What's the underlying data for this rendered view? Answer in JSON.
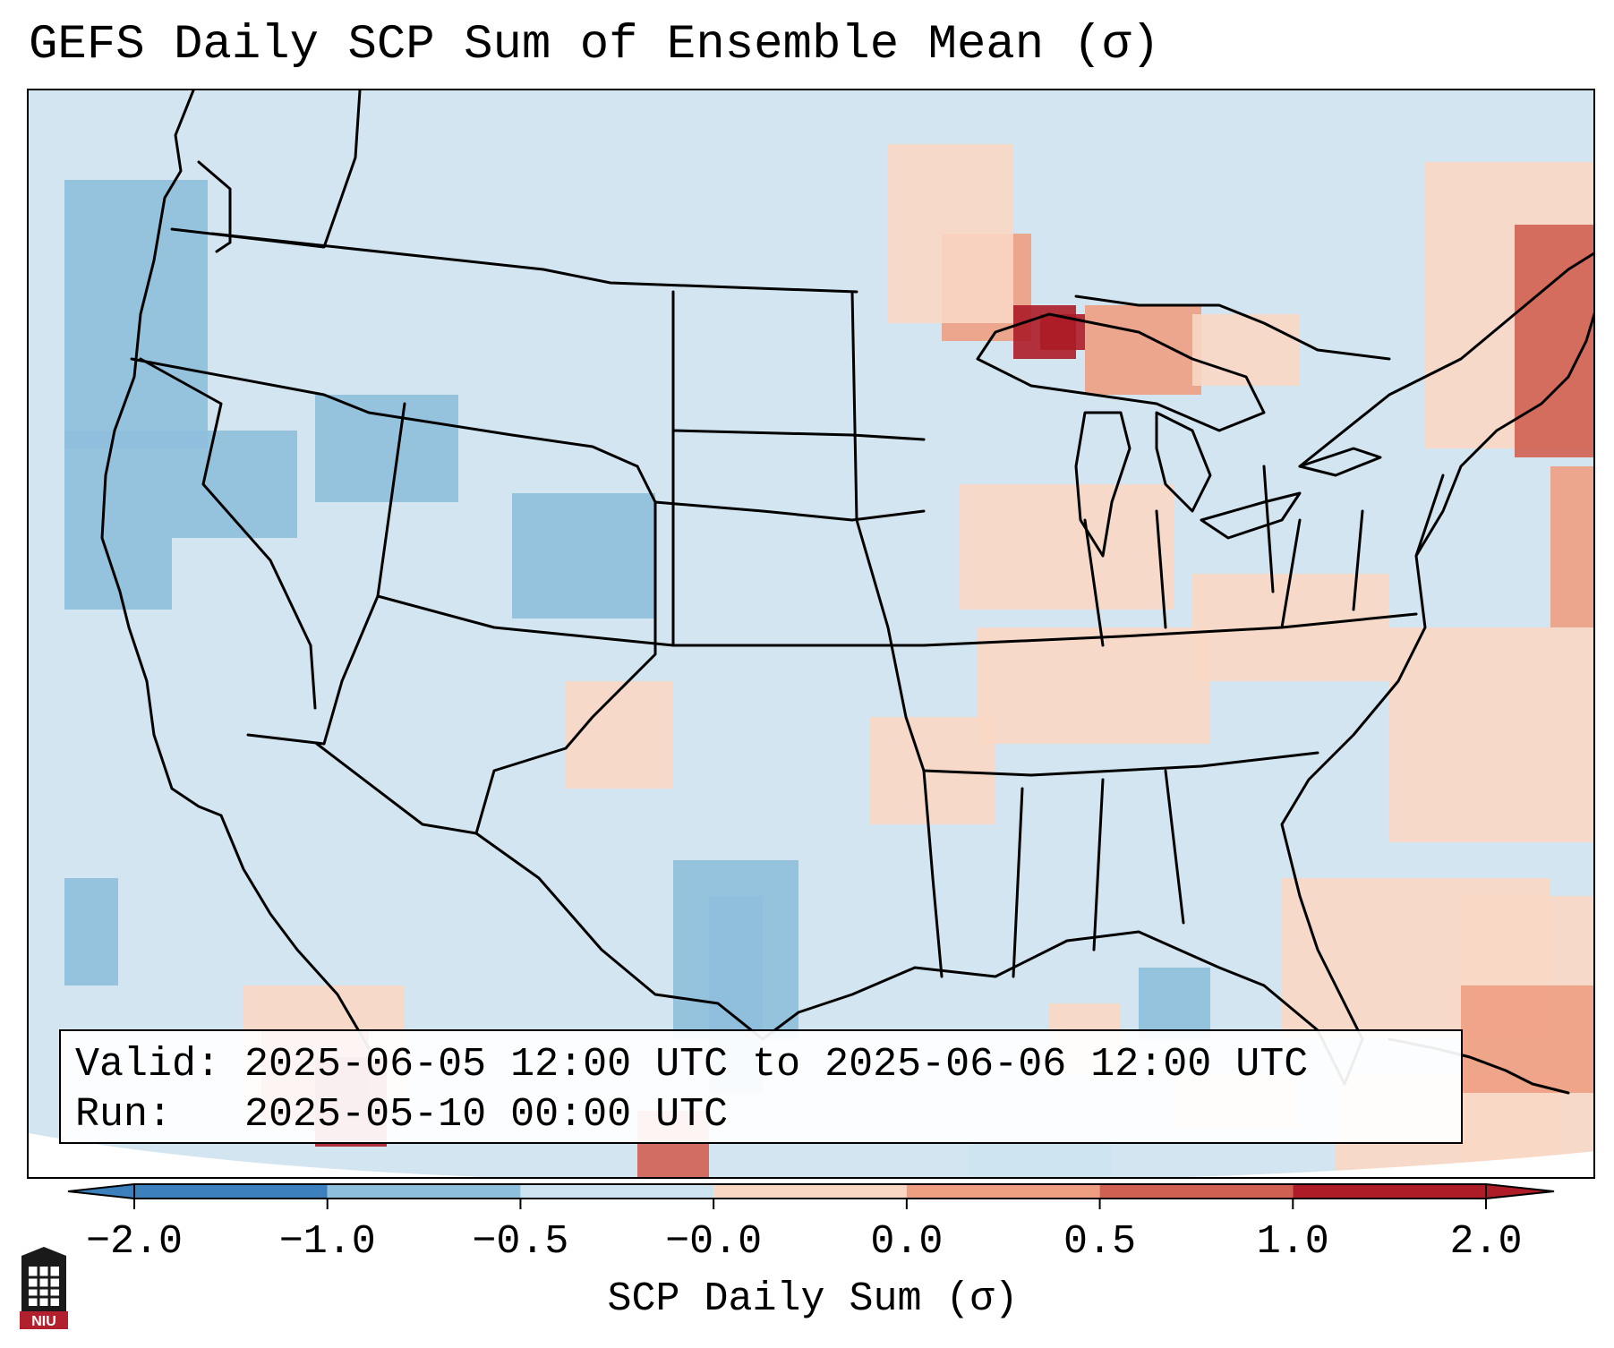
{
  "title": "GEFS Daily SCP Sum of Ensemble Mean (σ)",
  "valid_box": {
    "valid_label": "Valid:",
    "valid_value": "2025-06-05 12:00 UTC to 2025-06-06 12:00 UTC",
    "run_label": "Run:",
    "run_value": "2025-05-10 00:00 UTC"
  },
  "colorbar": {
    "label": "SCP Daily Sum (σ)",
    "ticks": [
      "−2.0",
      "−1.0",
      "−0.5",
      "−0.0",
      "0.0",
      "0.5",
      "1.0",
      "2.0"
    ],
    "colors": [
      "#3b7fbd",
      "#8ebfdc",
      "#cde3ef",
      "#f6fafc",
      "#fad7c4",
      "#ee9f82",
      "#d06051",
      "#ad1c27"
    ],
    "extend": "both"
  },
  "map": {
    "projection": "Lambert conformal, CONUS",
    "default_fill": "#d3e5f0",
    "region_values": [
      {
        "region": "Upper Michigan / Lake Superior",
        "value": "1.0 to 2.0"
      },
      {
        "region": "Western Mexico (Sinaloa)",
        "value": "1.0 to 2.0"
      },
      {
        "region": "New England / Atlantic",
        "value": "0.5 to 2.0"
      },
      {
        "region": "Utah / Colorado",
        "value": "-1.0 to -0.5"
      },
      {
        "region": "West Texas",
        "value": "-1.0 to -0.5"
      },
      {
        "region": "Ohio Valley / Midwest",
        "value": "0.0 to 0.5"
      }
    ]
  },
  "logo": {
    "text": "NIU",
    "color": "#b21f2d"
  }
}
